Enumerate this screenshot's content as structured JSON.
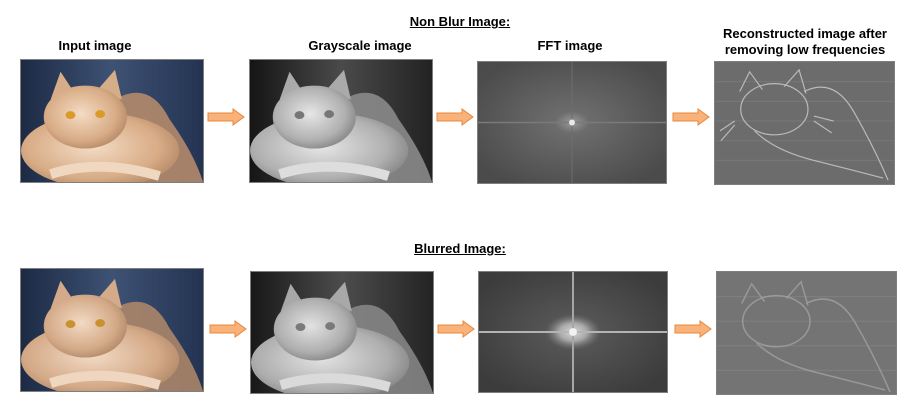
{
  "sections": [
    {
      "title": "Non Blur Image:",
      "labels": {
        "input": "Input image",
        "grayscale": "Grayscale image",
        "fft": "FFT image",
        "reconstructed_line1": "Reconstructed image after",
        "reconstructed_line2": "removing low frequencies"
      }
    },
    {
      "title": "Blurred Image:"
    }
  ],
  "colors": {
    "arrow_fill": "#f8b27a",
    "arrow_stroke": "#e8883e",
    "panel_border": "#7f7f7f"
  }
}
